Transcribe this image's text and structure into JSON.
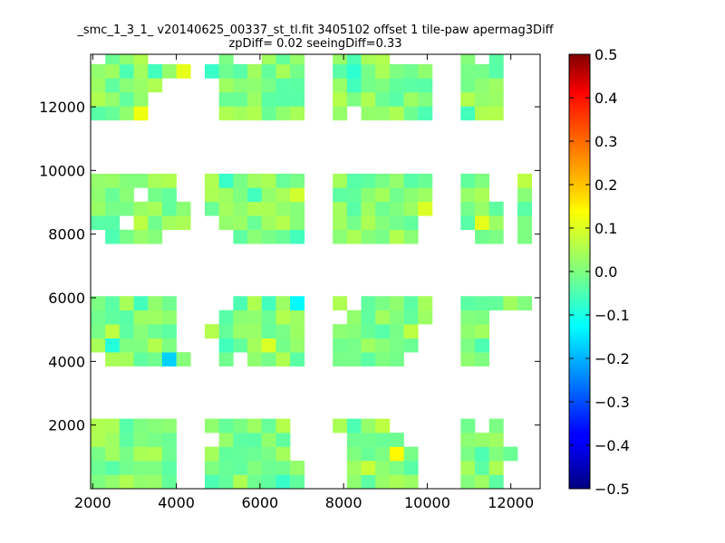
{
  "chart_data": {
    "type": "heatmap",
    "title_line1": "_smc_1_3_1_ v20140625_00337_st_tl.fit 3405102 offset 1 tile-paw apermag3Diff",
    "title_line2": "zpDiff= 0.02 seeingDiff=0.33",
    "xlabel": "",
    "ylabel": "",
    "xlim": [
      1950,
      12700
    ],
    "ylim": [
      0,
      13650
    ],
    "xticks": [
      2000,
      4000,
      6000,
      8000,
      10000,
      12000
    ],
    "yticks": [
      2000,
      4000,
      6000,
      8000,
      10000,
      12000
    ],
    "grid": false,
    "cell_size": [
      340,
      440
    ],
    "colorbar": {
      "colormap": "jet",
      "vmin": -0.5,
      "vmax": 0.5,
      "ticks": [
        0.5,
        0.4,
        0.3,
        0.2,
        0.1,
        0.0,
        -0.1,
        -0.2,
        -0.3,
        -0.4,
        -0.5
      ],
      "tick_labels": [
        "0.5",
        "0.4",
        "0.3",
        "0.2",
        "0.1",
        "0.0",
        "−0.1",
        "−0.2",
        "−0.3",
        "−0.4",
        "−0.5"
      ]
    },
    "cell_columns_x": [
      2130,
      2470,
      2810,
      3150,
      3490,
      3830,
      4170,
      4850,
      5190,
      5530,
      5870,
      6210,
      6550,
      6890,
      7910,
      8250,
      8590,
      8930,
      9270,
      9610,
      9950,
      10970,
      11310,
      11650,
      11990,
      12330
    ],
    "stripes": [
      {
        "name": "stripe-1",
        "y_rows": [
          220,
          660,
          1100,
          1540,
          1980
        ]
      },
      {
        "name": "stripe-2",
        "y_rows": [
          4070,
          4510,
          4950,
          5390,
          5830
        ]
      },
      {
        "name": "stripe-3",
        "y_rows": [
          7920,
          8360,
          8800,
          9240,
          9680
        ]
      },
      {
        "name": "stripe-4",
        "y_rows": [
          11800,
          12240,
          12680,
          13120,
          13560
        ]
      }
    ],
    "special_cells": [
      {
        "x": 9270,
        "y": 1100,
        "value": 0.13
      },
      {
        "x": 8590,
        "y": 660,
        "value": 0.07
      },
      {
        "x": 6550,
        "y": 1980,
        "value": 0.05
      },
      {
        "x": 8930,
        "y": 1980,
        "value": 0.06
      },
      {
        "x": 2810,
        "y": 1980,
        "value": -0.04
      },
      {
        "x": 8250,
        "y": 1980,
        "value": -0.05
      },
      {
        "x": 11310,
        "y": 1100,
        "value": -0.05
      },
      {
        "x": 6550,
        "y": 220,
        "value": -0.07
      },
      {
        "x": 4850,
        "y": 220,
        "value": -0.05
      },
      {
        "x": 3830,
        "y": 4070,
        "value": -0.17
      },
      {
        "x": 2130,
        "y": 4510,
        "value": 0.04
      },
      {
        "x": 2470,
        "y": 4510,
        "value": -0.09
      },
      {
        "x": 6210,
        "y": 4510,
        "value": 0.09
      },
      {
        "x": 9610,
        "y": 4950,
        "value": 0.06
      },
      {
        "x": 2470,
        "y": 4950,
        "value": 0.06
      },
      {
        "x": 6890,
        "y": 5830,
        "value": -0.13
      },
      {
        "x": 4850,
        "y": 4950,
        "value": 0.05
      },
      {
        "x": 3150,
        "y": 5830,
        "value": -0.06
      },
      {
        "x": 5530,
        "y": 5830,
        "value": -0.05
      },
      {
        "x": 6210,
        "y": 5830,
        "value": -0.06
      },
      {
        "x": 5190,
        "y": 4510,
        "value": -0.06
      },
      {
        "x": 11310,
        "y": 4510,
        "value": -0.05
      },
      {
        "x": 11310,
        "y": 8360,
        "value": 0.1
      },
      {
        "x": 3150,
        "y": 8360,
        "value": 0.06
      },
      {
        "x": 2470,
        "y": 7920,
        "value": -0.05
      },
      {
        "x": 6890,
        "y": 7920,
        "value": -0.06
      },
      {
        "x": 6550,
        "y": 8360,
        "value": 0.05
      },
      {
        "x": 6890,
        "y": 9240,
        "value": 0.08
      },
      {
        "x": 9950,
        "y": 8800,
        "value": 0.09
      },
      {
        "x": 5190,
        "y": 9680,
        "value": -0.07
      },
      {
        "x": 5870,
        "y": 9240,
        "value": -0.06
      },
      {
        "x": 8250,
        "y": 9680,
        "value": -0.04
      },
      {
        "x": 12330,
        "y": 9680,
        "value": 0.06
      },
      {
        "x": 3150,
        "y": 11800,
        "value": 0.11
      },
      {
        "x": 4170,
        "y": 13120,
        "value": 0.1
      },
      {
        "x": 4850,
        "y": 13120,
        "value": -0.07
      },
      {
        "x": 2810,
        "y": 13120,
        "value": -0.05
      },
      {
        "x": 3490,
        "y": 13120,
        "value": -0.06
      },
      {
        "x": 8250,
        "y": 13120,
        "value": -0.08
      },
      {
        "x": 8250,
        "y": 12680,
        "value": -0.06
      },
      {
        "x": 8250,
        "y": 13560,
        "value": -0.05
      },
      {
        "x": 7910,
        "y": 12240,
        "value": 0.05
      },
      {
        "x": 9950,
        "y": 11800,
        "value": -0.05
      },
      {
        "x": 10970,
        "y": 11800,
        "value": -0.06
      },
      {
        "x": 6550,
        "y": 12680,
        "value": -0.04
      },
      {
        "x": 11650,
        "y": 13120,
        "value": -0.04
      }
    ],
    "missing_cells": [
      {
        "x": 4170,
        "y": 220
      },
      {
        "x": 4170,
        "y": 660
      },
      {
        "x": 4170,
        "y": 1100
      },
      {
        "x": 4170,
        "y": 1540
      },
      {
        "x": 4170,
        "y": 1980
      },
      {
        "x": 4850,
        "y": 1540
      },
      {
        "x": 6890,
        "y": 1100
      },
      {
        "x": 6890,
        "y": 1540
      },
      {
        "x": 6890,
        "y": 1980
      },
      {
        "x": 7910,
        "y": 220
      },
      {
        "x": 7910,
        "y": 660
      },
      {
        "x": 7910,
        "y": 1100
      },
      {
        "x": 7910,
        "y": 1540
      },
      {
        "x": 9270,
        "y": 1980
      },
      {
        "x": 9610,
        "y": 1980
      },
      {
        "x": 9610,
        "y": 1540
      },
      {
        "x": 9950,
        "y": 220
      },
      {
        "x": 9950,
        "y": 660
      },
      {
        "x": 9950,
        "y": 1100
      },
      {
        "x": 9950,
        "y": 1540
      },
      {
        "x": 9950,
        "y": 1980
      },
      {
        "x": 11310,
        "y": 1980
      },
      {
        "x": 11990,
        "y": 220
      },
      {
        "x": 11990,
        "y": 660
      },
      {
        "x": 11990,
        "y": 1540
      },
      {
        "x": 11990,
        "y": 1980
      },
      {
        "x": 12330,
        "y": 220
      },
      {
        "x": 12330,
        "y": 660
      },
      {
        "x": 12330,
        "y": 1100
      },
      {
        "x": 12330,
        "y": 1540
      },
      {
        "x": 12330,
        "y": 1980
      },
      {
        "x": 2130,
        "y": 4070
      },
      {
        "x": 4170,
        "y": 4510
      },
      {
        "x": 4170,
        "y": 4950
      },
      {
        "x": 4170,
        "y": 5390
      },
      {
        "x": 4170,
        "y": 5830
      },
      {
        "x": 4850,
        "y": 4070
      },
      {
        "x": 4850,
        "y": 4510
      },
      {
        "x": 4850,
        "y": 5390
      },
      {
        "x": 4850,
        "y": 5830
      },
      {
        "x": 5190,
        "y": 5830
      },
      {
        "x": 5530,
        "y": 4070
      },
      {
        "x": 7910,
        "y": 5390
      },
      {
        "x": 8250,
        "y": 5830
      },
      {
        "x": 9950,
        "y": 4070
      },
      {
        "x": 9950,
        "y": 4510
      },
      {
        "x": 9950,
        "y": 4950
      },
      {
        "x": 9610,
        "y": 4070
      },
      {
        "x": 11650,
        "y": 4070
      },
      {
        "x": 11650,
        "y": 4510
      },
      {
        "x": 11650,
        "y": 4950
      },
      {
        "x": 11650,
        "y": 5390
      },
      {
        "x": 11990,
        "y": 4070
      },
      {
        "x": 11990,
        "y": 4510
      },
      {
        "x": 11990,
        "y": 4950
      },
      {
        "x": 11990,
        "y": 5390
      },
      {
        "x": 12330,
        "y": 4070
      },
      {
        "x": 12330,
        "y": 4510
      },
      {
        "x": 12330,
        "y": 4950
      },
      {
        "x": 12330,
        "y": 5390
      },
      {
        "x": 2130,
        "y": 7920
      },
      {
        "x": 2810,
        "y": 8360
      },
      {
        "x": 3150,
        "y": 9240
      },
      {
        "x": 3830,
        "y": 7920
      },
      {
        "x": 4170,
        "y": 7920
      },
      {
        "x": 4170,
        "y": 9240
      },
      {
        "x": 4170,
        "y": 9680
      },
      {
        "x": 4850,
        "y": 7920
      },
      {
        "x": 4850,
        "y": 8360
      },
      {
        "x": 5190,
        "y": 7920
      },
      {
        "x": 9950,
        "y": 7920
      },
      {
        "x": 9950,
        "y": 8360
      },
      {
        "x": 10970,
        "y": 7920
      },
      {
        "x": 11990,
        "y": 7920
      },
      {
        "x": 11990,
        "y": 8360
      },
      {
        "x": 11990,
        "y": 8800
      },
      {
        "x": 11990,
        "y": 9240
      },
      {
        "x": 11990,
        "y": 9680
      },
      {
        "x": 11650,
        "y": 9240
      },
      {
        "x": 11650,
        "y": 9680
      },
      {
        "x": 2130,
        "y": 13560
      },
      {
        "x": 3490,
        "y": 11800
      },
      {
        "x": 3490,
        "y": 12240
      },
      {
        "x": 3490,
        "y": 13560
      },
      {
        "x": 3830,
        "y": 11800
      },
      {
        "x": 3830,
        "y": 12240
      },
      {
        "x": 3830,
        "y": 12680
      },
      {
        "x": 3830,
        "y": 13560
      },
      {
        "x": 4170,
        "y": 11800
      },
      {
        "x": 4170,
        "y": 12240
      },
      {
        "x": 4170,
        "y": 12680
      },
      {
        "x": 4170,
        "y": 13560
      },
      {
        "x": 4850,
        "y": 11800
      },
      {
        "x": 4850,
        "y": 12240
      },
      {
        "x": 4850,
        "y": 12680
      },
      {
        "x": 4850,
        "y": 13560
      },
      {
        "x": 5530,
        "y": 13560
      },
      {
        "x": 5870,
        "y": 13560
      },
      {
        "x": 8250,
        "y": 11800
      },
      {
        "x": 9270,
        "y": 13560
      },
      {
        "x": 9610,
        "y": 13560
      },
      {
        "x": 9950,
        "y": 13560
      },
      {
        "x": 11310,
        "y": 13560
      },
      {
        "x": 11990,
        "y": 11800
      },
      {
        "x": 11990,
        "y": 12240
      },
      {
        "x": 11990,
        "y": 12680
      },
      {
        "x": 11990,
        "y": 13120
      },
      {
        "x": 11990,
        "y": 13560
      },
      {
        "x": 12330,
        "y": 11800
      },
      {
        "x": 12330,
        "y": 12240
      },
      {
        "x": 12330,
        "y": 12680
      },
      {
        "x": 12330,
        "y": 13120
      },
      {
        "x": 12330,
        "y": 13560
      }
    ]
  }
}
